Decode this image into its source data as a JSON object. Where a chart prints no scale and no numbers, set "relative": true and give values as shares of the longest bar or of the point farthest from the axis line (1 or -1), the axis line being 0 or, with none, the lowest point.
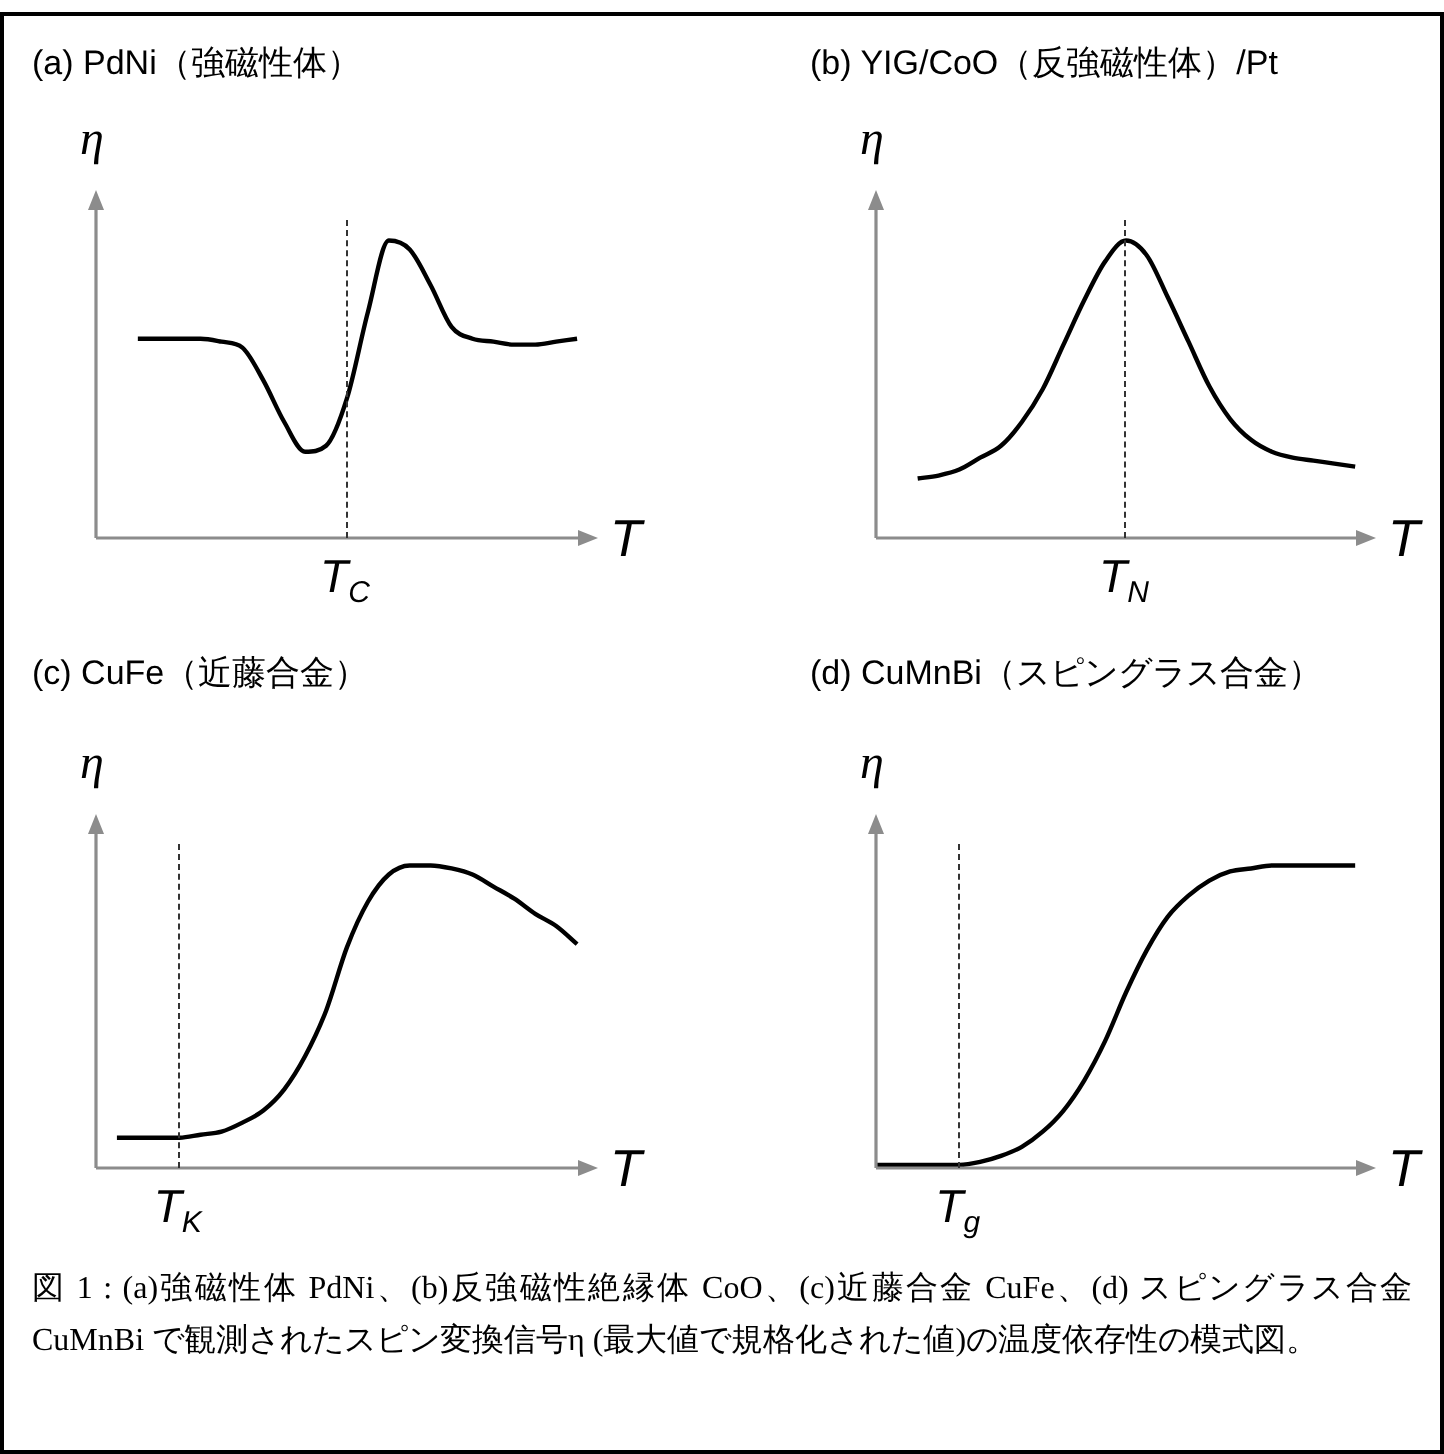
{
  "chart_data": [
    {
      "type": "line",
      "title": "(a) PdNi（強磁性体）",
      "xlabel": "T",
      "ylabel": "η",
      "relative": true,
      "categories": [
        null,
        null,
        null,
        null,
        null,
        null,
        null,
        null,
        null,
        null,
        null,
        null,
        null,
        null,
        null,
        null,
        null,
        null,
        null,
        null,
        null,
        null,
        null,
        null,
        null
      ],
      "series": [
        {
          "color": "#000000",
          "values": [
            null,
            null,
            0.67,
            0.67,
            0.67,
            0.67,
            0.66,
            0.64,
            0.53,
            0.39,
            0.29,
            0.31,
            0.47,
            0.76,
            1,
            0.97,
            0.85,
            0.71,
            0.67,
            0.66,
            0.65,
            0.65,
            0.66,
            0.67,
            null
          ]
        }
      ],
      "annotations": [
        "T$_{C}$"
      ]
    },
    {
      "type": "line",
      "title": "(b) YIG/CoO（反強磁性体）/Pt",
      "xlabel": "T",
      "ylabel": "η",
      "relative": true,
      "categories": [
        null,
        null,
        null,
        null,
        null,
        null,
        null,
        null,
        null,
        null,
        null,
        null,
        null,
        null,
        null,
        null,
        null,
        null,
        null,
        null,
        null,
        null,
        null,
        null,
        null
      ],
      "series": [
        {
          "color": "#000000",
          "values": [
            null,
            null,
            0.2,
            0.21,
            0.23,
            0.27,
            0.31,
            0.39,
            0.5,
            0.65,
            0.8,
            0.93,
            1,
            0.95,
            0.81,
            0.66,
            0.51,
            0.4,
            0.33,
            0.29,
            0.27,
            0.26,
            0.25,
            0.24,
            null
          ]
        }
      ],
      "annotations": [
        "T$_{N}$"
      ]
    },
    {
      "type": "line",
      "title": "(c) CuFe（近藤合金）",
      "xlabel": "T",
      "ylabel": "η",
      "relative": true,
      "categories": [
        null,
        null,
        null,
        null,
        null,
        null,
        null,
        null,
        null,
        null,
        null,
        null,
        null,
        null,
        null,
        null,
        null,
        null,
        null,
        null,
        null,
        null,
        null,
        null,
        null
      ],
      "series": [
        {
          "color": "#000000",
          "values": [
            null,
            0.1,
            0.1,
            0.1,
            0.1,
            0.11,
            0.12,
            0.15,
            0.19,
            0.26,
            0.37,
            0.52,
            0.73,
            0.88,
            0.97,
            1,
            1,
            0.99,
            0.97,
            0.93,
            0.89,
            0.84,
            0.8,
            0.74,
            null
          ]
        }
      ],
      "annotations": [
        "T$_{K}$"
      ]
    },
    {
      "type": "line",
      "title": "(d) CuMnBi（スピングラス合金）",
      "xlabel": "T",
      "ylabel": "η",
      "relative": true,
      "categories": [
        null,
        null,
        null,
        null,
        null,
        null,
        null,
        null,
        null,
        null,
        null,
        null,
        null,
        null,
        null,
        null,
        null,
        null,
        null,
        null,
        null,
        null,
        null,
        null,
        null
      ],
      "series": [
        {
          "color": "#000000",
          "values": [
            0.01,
            0.01,
            0.01,
            0.01,
            0.01,
            0.02,
            0.04,
            0.07,
            0.12,
            0.19,
            0.29,
            0.42,
            0.58,
            0.72,
            0.83,
            0.9,
            0.95,
            0.98,
            0.99,
            1,
            1,
            1,
            1,
            1,
            null
          ]
        }
      ],
      "annotations": [
        "T$_{g}$",
        "図 1 : (a)強磁性体 PdNi、(b)反強磁性絶縁体 CoO、(c)近藤合金 CuFe、(d) スピングラス合金 CuMnBi で観測されたスピン変換信号η (最大値で規格化された値)の温度依存性の模式図。"
      ]
    }
  ]
}
